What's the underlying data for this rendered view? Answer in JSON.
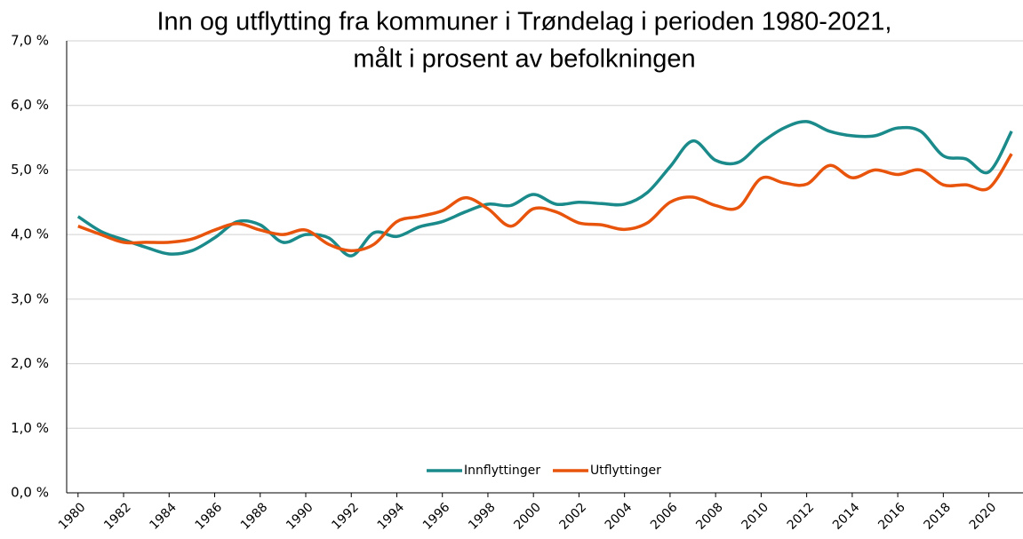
{
  "chart_data": {
    "type": "line",
    "title": [
      "Inn og utflytting fra kommuner i Trøndelag i perioden 1980-2021,",
      "målt i prosent av befolkningen"
    ],
    "x": [
      1980,
      1981,
      1982,
      1983,
      1984,
      1985,
      1986,
      1987,
      1988,
      1989,
      1990,
      1991,
      1992,
      1993,
      1994,
      1995,
      1996,
      1997,
      1998,
      1999,
      2000,
      2001,
      2002,
      2003,
      2004,
      2005,
      2006,
      2007,
      2008,
      2009,
      2010,
      2011,
      2012,
      2013,
      2014,
      2015,
      2016,
      2017,
      2018,
      2019,
      2020,
      2021
    ],
    "xlim": [
      1979.5,
      2021.5
    ],
    "xticks": [
      1980,
      1982,
      1984,
      1986,
      1988,
      1990,
      1992,
      1994,
      1996,
      1998,
      2000,
      2002,
      2004,
      2006,
      2008,
      2010,
      2012,
      2014,
      2016,
      2018,
      2020
    ],
    "ylim": [
      0,
      7
    ],
    "yticks": [
      {
        "value": 0,
        "label": "0,0 %"
      },
      {
        "value": 1,
        "label": "1,0 %"
      },
      {
        "value": 2,
        "label": "2,0 %"
      },
      {
        "value": 3,
        "label": "3,0 %"
      },
      {
        "value": 4,
        "label": "4,0 %"
      },
      {
        "value": 5,
        "label": "5,0 %"
      },
      {
        "value": 6,
        "label": "6,0 %"
      },
      {
        "value": 7,
        "label": "7,0 %"
      }
    ],
    "grid": true,
    "legend": "bottom",
    "series": [
      {
        "name": "Innflyttinger",
        "color": "#1a8a8a",
        "values": [
          4.28,
          4.05,
          3.92,
          3.8,
          3.7,
          3.75,
          3.95,
          4.2,
          4.15,
          3.88,
          4.0,
          3.95,
          3.67,
          4.03,
          3.97,
          4.12,
          4.2,
          4.35,
          4.47,
          4.45,
          4.62,
          4.47,
          4.5,
          4.48,
          4.47,
          4.65,
          5.05,
          5.45,
          5.15,
          5.12,
          5.42,
          5.65,
          5.75,
          5.6,
          5.53,
          5.53,
          5.65,
          5.6,
          5.22,
          5.17,
          4.97,
          5.6
        ]
      },
      {
        "name": "Utflyttinger",
        "color": "#e8540c",
        "values": [
          4.13,
          4.0,
          3.88,
          3.88,
          3.88,
          3.93,
          4.07,
          4.17,
          4.07,
          4.0,
          4.07,
          3.85,
          3.75,
          3.85,
          4.2,
          4.28,
          4.37,
          4.57,
          4.4,
          4.13,
          4.4,
          4.35,
          4.18,
          4.15,
          4.08,
          4.18,
          4.5,
          4.58,
          4.45,
          4.42,
          4.87,
          4.8,
          4.78,
          5.07,
          4.88,
          5.0,
          4.93,
          5.0,
          4.77,
          4.77,
          4.72,
          5.25
        ]
      }
    ]
  }
}
